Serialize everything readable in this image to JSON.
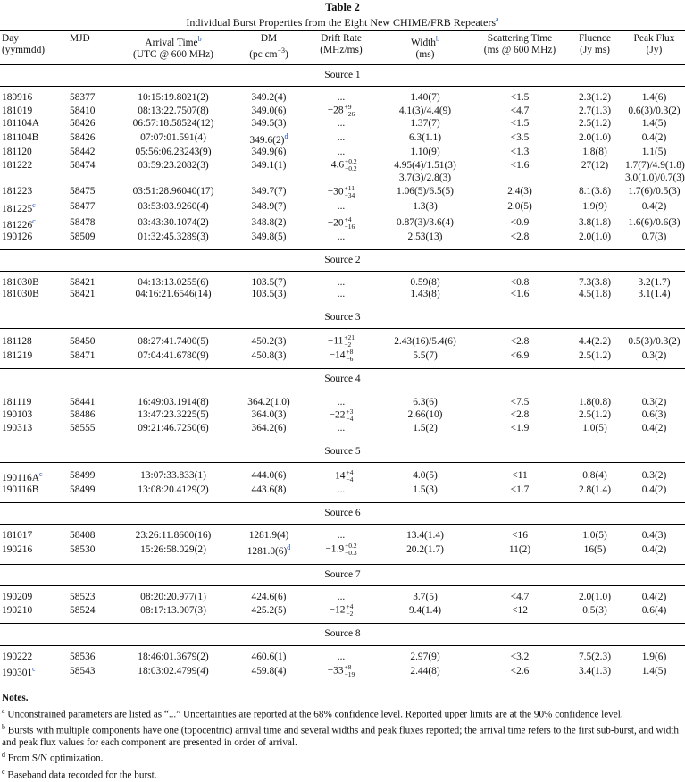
{
  "title": "Table 2",
  "subtitle": "Individual Burst Properties from the Eight New CHIME/FRB Repeaters",
  "subtitle_mark": "a",
  "headers": [
    {
      "l1": "Day",
      "l2": "(yymmdd)"
    },
    {
      "l1": "MJD",
      "l2": ""
    },
    {
      "l1": "Arrival Time",
      "mark": "b",
      "l2": "(UTC @ 600 MHz)"
    },
    {
      "l1": "DM",
      "l2": "(pc cm−3)"
    },
    {
      "l1": "Drift Rate",
      "l2": "(MHz/ms)"
    },
    {
      "l1": "Width",
      "mark": "b",
      "l2": "(ms)"
    },
    {
      "l1": "Scattering Time",
      "l2": "(ms @ 600 MHz)"
    },
    {
      "l1": "Fluence",
      "l2": "(Jy ms)"
    },
    {
      "l1": "Peak Flux",
      "l2": "(Jy)"
    }
  ],
  "sources": [
    {
      "label": "Source 1",
      "rows": [
        {
          "day": "180916",
          "mjd": "58377",
          "arrival": "10:15:19.8021(2)",
          "dm": "349.2(4)",
          "drift": "...",
          "width": "1.40(7)",
          "scat": "<1.5",
          "fluence": "2.3(1.2)",
          "peak": "1.4(6)"
        },
        {
          "day": "181019",
          "mjd": "58410",
          "arrival": "08:13:22.7507(8)",
          "dm": "349.0(6)",
          "drift": "−28",
          "drift_up": "+9",
          "drift_lo": "−26",
          "width": "4.1(3)/4.4(9)",
          "scat": "<4.7",
          "fluence": "2.7(1.3)",
          "peak": "0.6(3)/0.3(2)"
        },
        {
          "day": "181104A",
          "mjd": "58426",
          "arrival": "06:57:18.58524(12)",
          "dm": "349.5(3)",
          "drift": "...",
          "width": "1.37(7)",
          "scat": "<1.5",
          "fluence": "2.5(1.2)",
          "peak": "1.4(5)"
        },
        {
          "day": "181104B",
          "mjd": "58426",
          "arrival": "07:07:01.591(4)",
          "dm": "349.6(2)",
          "dm_mark": "d",
          "drift": "...",
          "width": "6.3(1.1)",
          "scat": "<3.5",
          "fluence": "2.0(1.0)",
          "peak": "0.4(2)"
        },
        {
          "day": "181120",
          "mjd": "58442",
          "arrival": "05:56:06.23243(9)",
          "dm": "349.9(6)",
          "drift": "...",
          "width": "1.10(9)",
          "scat": "<1.3",
          "fluence": "1.8(8)",
          "peak": "1.1(5)"
        },
        {
          "day": "181222",
          "mjd": "58474",
          "arrival": "03:59:23.2082(3)",
          "dm": "349.1(1)",
          "drift": "−4.6",
          "drift_up": "+0.2",
          "drift_lo": "−0.2",
          "width": "4.95(4)/1.51(3)",
          "scat": "<1.6",
          "fluence": "27(12)",
          "peak": "1.7(7)/4.9(1.8)"
        },
        {
          "day": "",
          "mjd": "",
          "arrival": "",
          "dm": "",
          "drift": "",
          "width": "3.7(3)/2.8(3)",
          "scat": "",
          "fluence": "",
          "peak": "3.0(1.0)/0.7(3)"
        },
        {
          "day": "181223",
          "mjd": "58475",
          "arrival": "03:51:28.96040(17)",
          "dm": "349.7(7)",
          "drift": "−30",
          "drift_up": "+11",
          "drift_lo": "−34",
          "width": "1.06(5)/6.5(5)",
          "scat": "2.4(3)",
          "fluence": "8.1(3.8)",
          "peak": "1.7(6)/0.5(3)"
        },
        {
          "day": "181225",
          "day_mark": "c",
          "mjd": "58477",
          "arrival": "03:53:03.9260(4)",
          "dm": "348.9(7)",
          "drift": "...",
          "width": "1.3(3)",
          "scat": "2.0(5)",
          "fluence": "1.9(9)",
          "peak": "0.4(2)"
        },
        {
          "day": "181226",
          "day_mark": "c",
          "mjd": "58478",
          "arrival": "03:43:30.1074(2)",
          "dm": "348.8(2)",
          "drift": "−20",
          "drift_up": "+4",
          "drift_lo": "−16",
          "width": "0.87(3)/3.6(4)",
          "scat": "<0.9",
          "fluence": "3.8(1.8)",
          "peak": "1.6(6)/0.6(3)"
        },
        {
          "day": "190126",
          "mjd": "58509",
          "arrival": "01:32:45.3289(3)",
          "dm": "349.8(5)",
          "drift": "...",
          "width": "2.53(13)",
          "scat": "<2.8",
          "fluence": "2.0(1.0)",
          "peak": "0.7(3)"
        }
      ]
    },
    {
      "label": "Source 2",
      "rows": [
        {
          "day": "181030B",
          "mjd": "58421",
          "arrival": "04:13:13.0255(6)",
          "dm": "103.5(7)",
          "drift": "...",
          "width": "0.59(8)",
          "scat": "<0.8",
          "fluence": "7.3(3.8)",
          "peak": "3.2(1.7)"
        },
        {
          "day": "181030B",
          "mjd": "58421",
          "arrival": "04:16:21.6546(14)",
          "dm": "103.5(3)",
          "drift": "...",
          "width": "1.43(8)",
          "scat": "<1.6",
          "fluence": "4.5(1.8)",
          "peak": "3.1(1.4)"
        }
      ]
    },
    {
      "label": "Source 3",
      "rows": [
        {
          "day": "181128",
          "mjd": "58450",
          "arrival": "08:27:41.7400(5)",
          "dm": "450.2(3)",
          "drift": "−11",
          "drift_up": "+21",
          "drift_lo": "−2",
          "width": "2.43(16)/5.4(6)",
          "scat": "<2.8",
          "fluence": "4.4(2.2)",
          "peak": "0.5(3)/0.3(2)"
        },
        {
          "day": "181219",
          "mjd": "58471",
          "arrival": "07:04:41.6780(9)",
          "dm": "450.8(3)",
          "drift": "−14",
          "drift_up": "+8",
          "drift_lo": "−6",
          "width": "5.5(7)",
          "scat": "<6.9",
          "fluence": "2.5(1.2)",
          "peak": "0.3(2)"
        }
      ]
    },
    {
      "label": "Source 4",
      "rows": [
        {
          "day": "181119",
          "mjd": "58441",
          "arrival": "16:49:03.1914(8)",
          "dm": "364.2(1.0)",
          "drift": "...",
          "width": "6.3(6)",
          "scat": "<7.5",
          "fluence": "1.8(0.8)",
          "peak": "0.3(2)"
        },
        {
          "day": "190103",
          "mjd": "58486",
          "arrival": "13:47:23.3225(5)",
          "dm": "364.0(3)",
          "drift": "−22",
          "drift_up": "+3",
          "drift_lo": "−4",
          "width": "2.66(10)",
          "scat": "<2.8",
          "fluence": "2.5(1.2)",
          "peak": "0.6(3)"
        },
        {
          "day": "190313",
          "mjd": "58555",
          "arrival": "09:21:46.7250(6)",
          "dm": "364.2(6)",
          "drift": "...",
          "width": "1.5(2)",
          "scat": "<1.9",
          "fluence": "1.0(5)",
          "peak": "0.4(2)"
        }
      ]
    },
    {
      "label": "Source 5",
      "rows": [
        {
          "day": "190116A",
          "day_mark": "c",
          "mjd": "58499",
          "arrival": "13:07:33.833(1)",
          "dm": "444.0(6)",
          "drift": "−14",
          "drift_up": "+4",
          "drift_lo": "−4",
          "width": "4.0(5)",
          "scat": "<11",
          "fluence": "0.8(4)",
          "peak": "0.3(2)"
        },
        {
          "day": "190116B",
          "mjd": "58499",
          "arrival": "13:08:20.4129(2)",
          "dm": "443.6(8)",
          "drift": "...",
          "width": "1.5(3)",
          "scat": "<1.7",
          "fluence": "2.8(1.4)",
          "peak": "0.4(2)"
        }
      ]
    },
    {
      "label": "Source 6",
      "rows": [
        {
          "day": "181017",
          "mjd": "58408",
          "arrival": "23:26:11.8600(16)",
          "dm": "1281.9(4)",
          "drift": "...",
          "width": "13.4(1.4)",
          "scat": "<16",
          "fluence": "1.0(5)",
          "peak": "0.4(3)"
        },
        {
          "day": "190216",
          "mjd": "58530",
          "arrival": "15:26:58.029(2)",
          "dm": "1281.0(6)",
          "dm_mark": "d",
          "drift": "−1.9",
          "drift_up": "+0.2",
          "drift_lo": "−0.3",
          "width": "20.2(1.7)",
          "scat": "11(2)",
          "fluence": "16(5)",
          "peak": "0.4(2)"
        }
      ]
    },
    {
      "label": "Source 7",
      "rows": [
        {
          "day": "190209",
          "mjd": "58523",
          "arrival": "08:20:20.977(1)",
          "dm": "424.6(6)",
          "drift": "...",
          "width": "3.7(5)",
          "scat": "<4.7",
          "fluence": "2.0(1.0)",
          "peak": "0.4(2)"
        },
        {
          "day": "190210",
          "mjd": "58524",
          "arrival": "08:17:13.907(3)",
          "dm": "425.2(5)",
          "drift": "−12",
          "drift_up": "+4",
          "drift_lo": "−2",
          "width": "9.4(1.4)",
          "scat": "<12",
          "fluence": "0.5(3)",
          "peak": "0.6(4)"
        }
      ]
    },
    {
      "label": "Source 8",
      "rows": [
        {
          "day": "190222",
          "mjd": "58536",
          "arrival": "18:46:01.3679(2)",
          "dm": "460.6(1)",
          "drift": "...",
          "width": "2.97(9)",
          "scat": "<3.2",
          "fluence": "7.5(2.3)",
          "peak": "1.9(6)"
        },
        {
          "day": "190301",
          "day_mark": "c",
          "mjd": "58543",
          "arrival": "18:03:02.4799(4)",
          "dm": "459.8(4)",
          "drift": "−33",
          "drift_up": "+8",
          "drift_lo": "−19",
          "width": "2.44(8)",
          "scat": "<2.6",
          "fluence": "3.4(1.3)",
          "peak": "1.4(5)"
        }
      ]
    }
  ],
  "notes": {
    "heading": "Notes.",
    "items": [
      {
        "mark": "a",
        "text": "Unconstrained parameters are listed as “...” Uncertainties are reported at the 68% confidence level. Reported upper limits are at the 90% confidence level."
      },
      {
        "mark": "b",
        "text": "Bursts with multiple components have one (topocentric) arrival time and several widths and peak fluxes reported; the arrival time refers to the first sub-burst, and width and peak flux values for each component are presented in order of arrival."
      },
      {
        "mark": "d",
        "text": "From S/N optimization."
      },
      {
        "mark": "c",
        "text": "Baseband data recorded for the burst."
      }
    ]
  },
  "colors": {
    "link": "#1f4fb5",
    "text": "#111111"
  }
}
